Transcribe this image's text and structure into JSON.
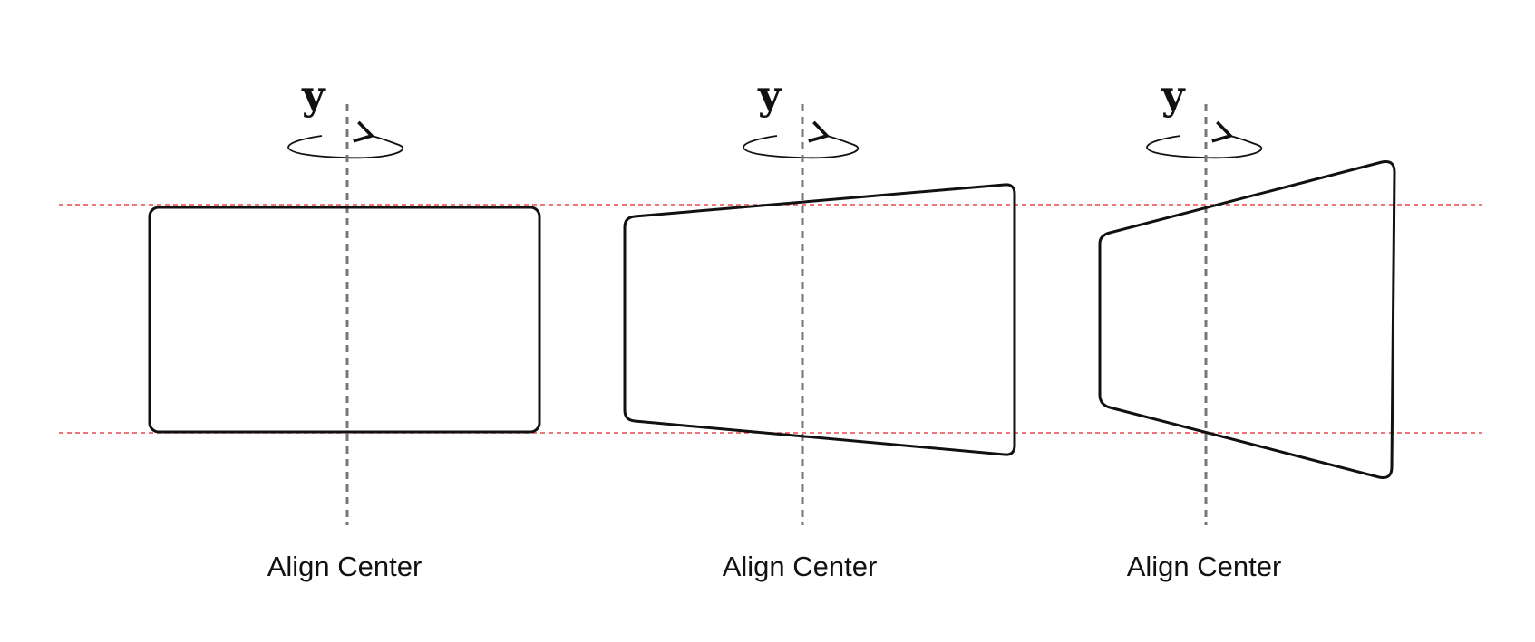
{
  "colors": {
    "guide": "#e5484d",
    "axis": "#777777",
    "stroke": "#111111"
  },
  "panels": [
    {
      "axis_label": "y",
      "caption": "Align Center",
      "shape": "rectangle"
    },
    {
      "axis_label": "y",
      "caption": "Align Center",
      "shape": "trapezoid"
    },
    {
      "axis_label": "y",
      "caption": "Align Center",
      "shape": "trapezoid-strong"
    }
  ]
}
